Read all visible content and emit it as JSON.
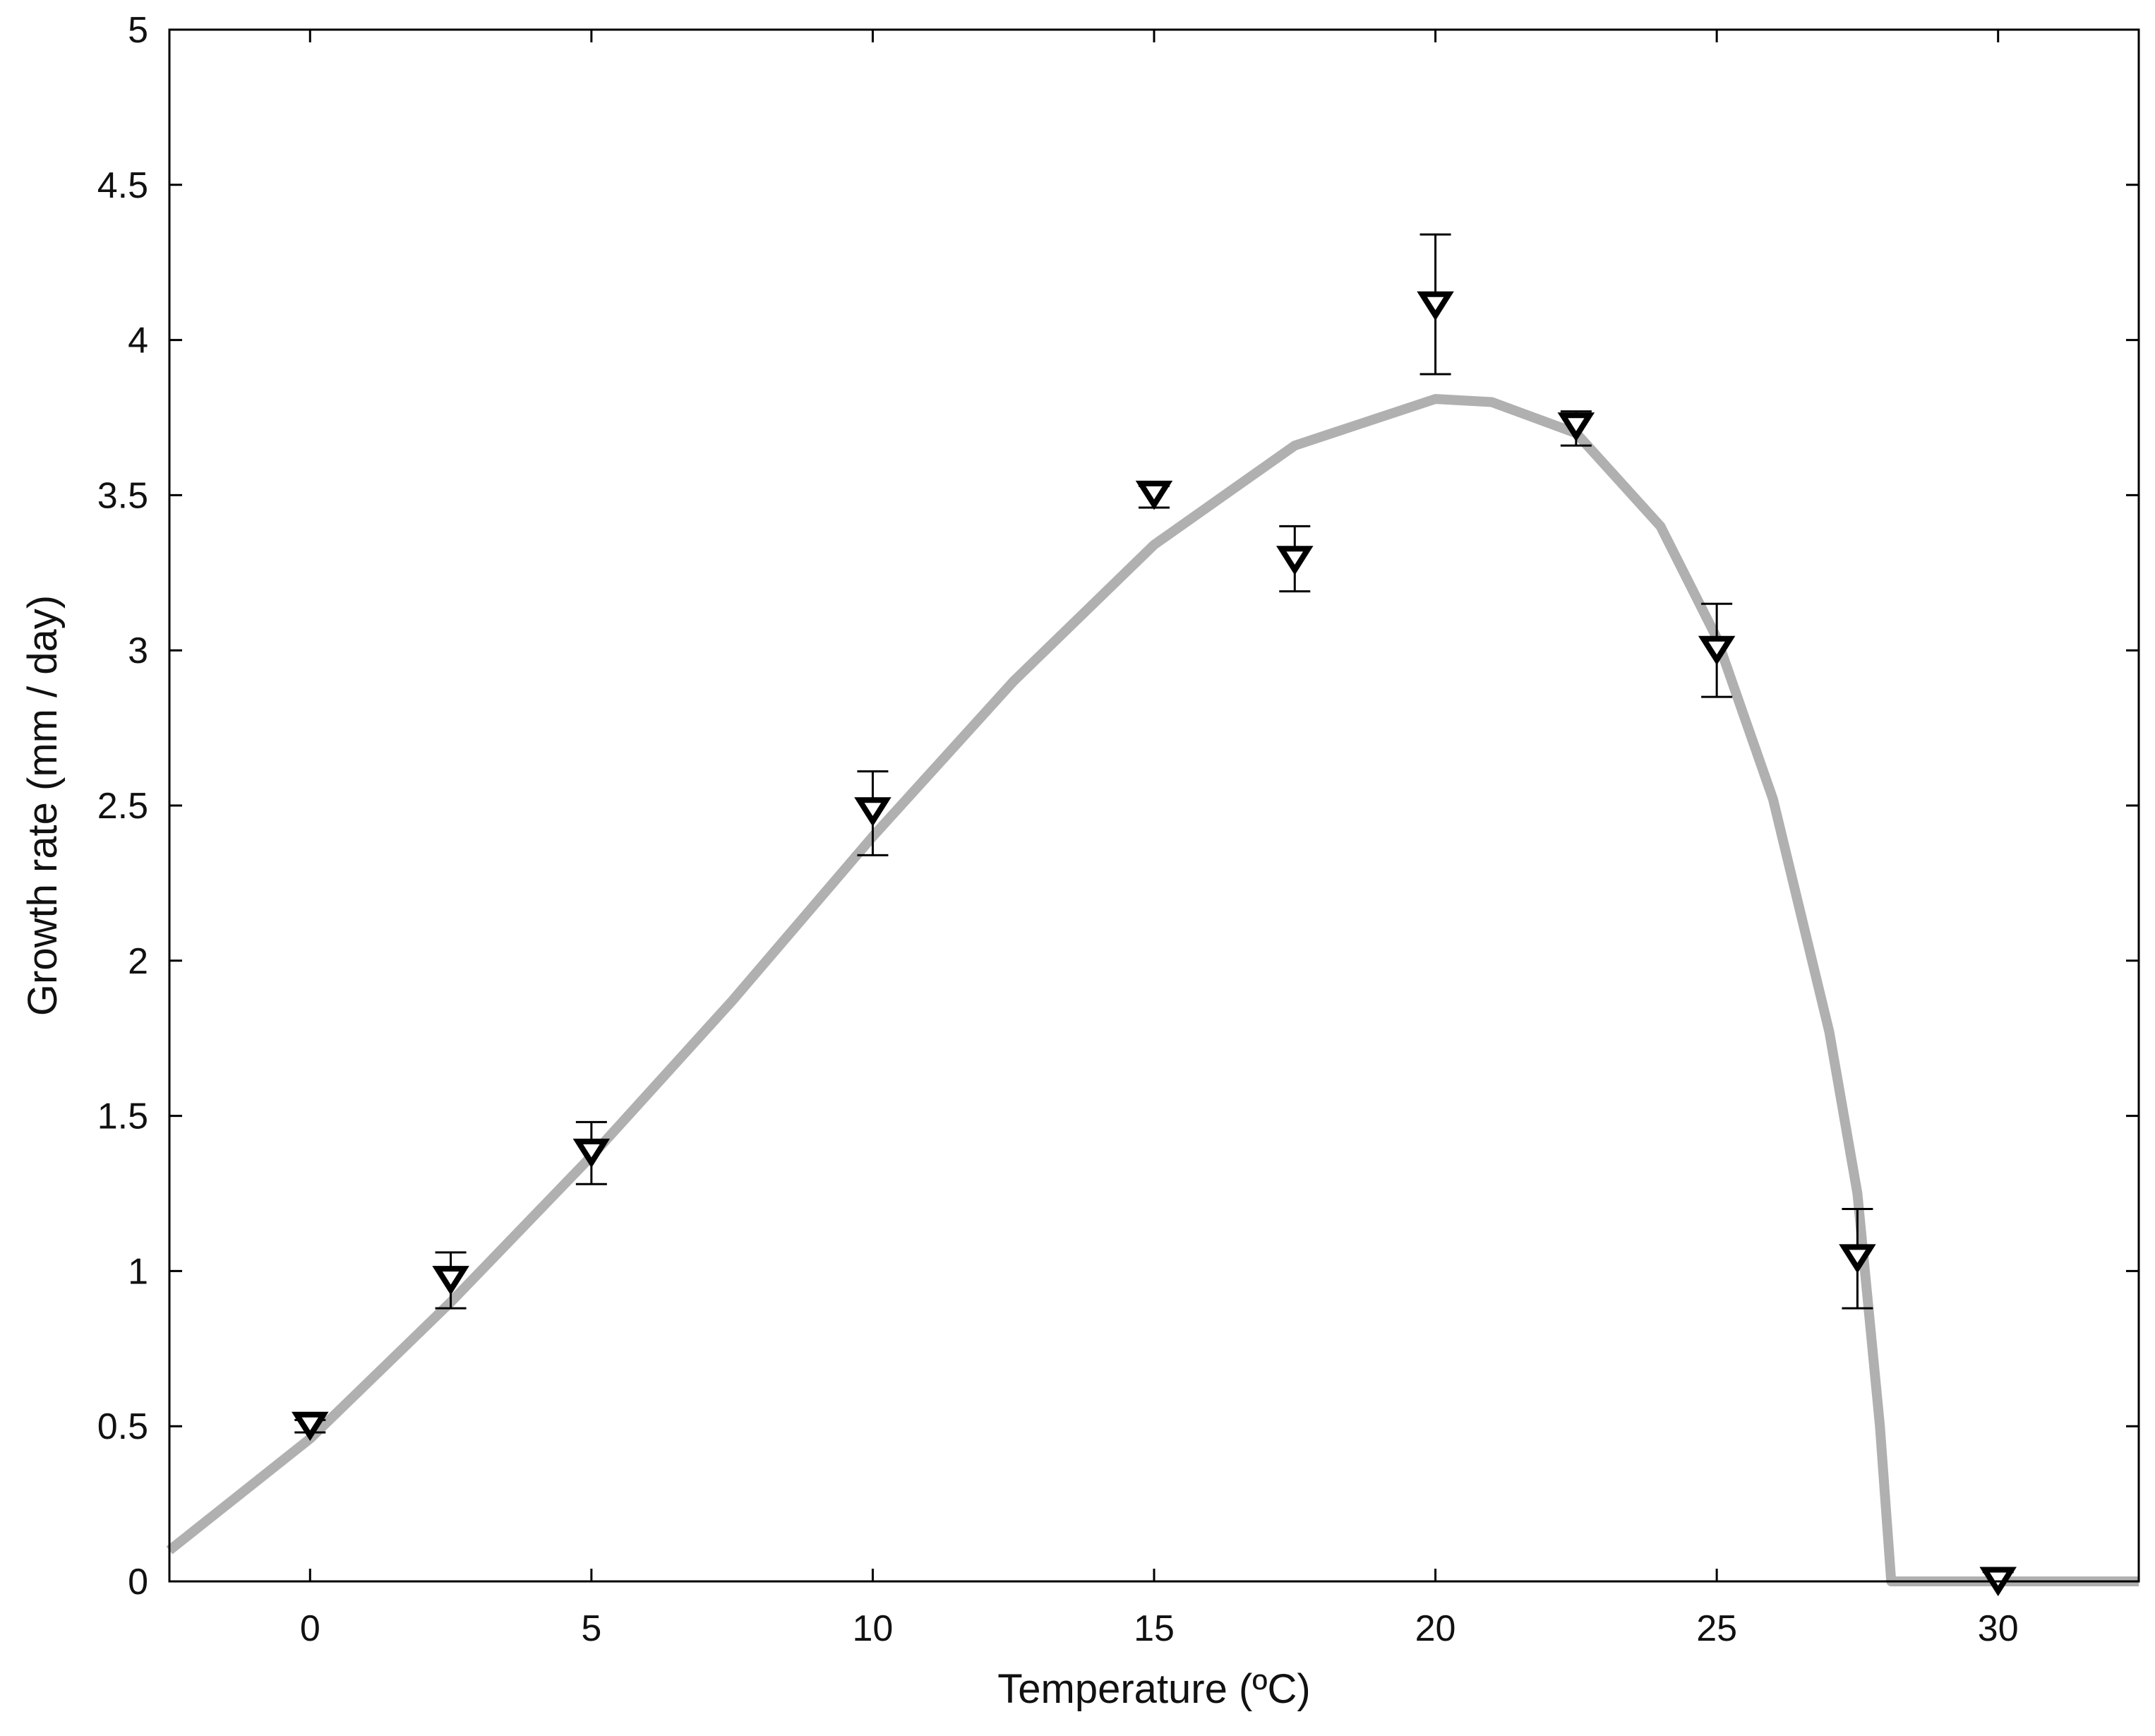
{
  "chart_data": {
    "type": "scatter",
    "title": "",
    "xlabel": "Temperature   (ºC)",
    "ylabel": "Growth rate   (mm / day)",
    "xlim": [
      -2.5,
      32.5
    ],
    "ylim": [
      0,
      5
    ],
    "xticks": [
      0,
      5,
      10,
      15,
      20,
      25,
      30
    ],
    "xtick_labels": [
      "0",
      "5",
      "10",
      "15",
      "20",
      "25",
      "30"
    ],
    "yticks": [
      0,
      0.5,
      1,
      1.5,
      2,
      2.5,
      3,
      3.5,
      4,
      4.5,
      5
    ],
    "ytick_labels": [
      "0",
      "0.5",
      "1",
      "1.5",
      "2",
      "2.5",
      "3",
      "3.5",
      "4",
      "4.5",
      "5"
    ],
    "grid": false,
    "legend": false,
    "series": [
      {
        "type": "scatter",
        "marker": "inverted-triangle",
        "color": "#000000",
        "x": [
          0,
          2.5,
          5,
          10,
          15,
          17.5,
          20,
          22.5,
          25,
          27.5,
          30
        ],
        "y": [
          0.5,
          0.97,
          1.38,
          2.48,
          3.5,
          3.29,
          4.11,
          3.72,
          3.0,
          1.04,
          0.0
        ],
        "err_low": [
          0.48,
          0.88,
          1.28,
          2.34,
          3.46,
          3.19,
          3.89,
          3.66,
          2.85,
          0.88,
          0.0
        ],
        "err_high": [
          0.52,
          1.06,
          1.48,
          2.61,
          3.53,
          3.4,
          4.34,
          3.77,
          3.15,
          1.2,
          0.03
        ]
      },
      {
        "type": "line",
        "color": "#b0b0b0",
        "x": [
          -2.5,
          0,
          2.5,
          5,
          7.5,
          10,
          12.5,
          15,
          17.5,
          20,
          21,
          22.5,
          24,
          25,
          26,
          27,
          27.5,
          27.9,
          28.1,
          32.5
        ],
        "y": [
          0.1,
          0.46,
          0.9,
          1.37,
          1.87,
          2.4,
          2.9,
          3.34,
          3.66,
          3.81,
          3.8,
          3.7,
          3.4,
          3.04,
          2.52,
          1.77,
          1.25,
          0.5,
          0.0,
          0.0
        ]
      }
    ]
  }
}
